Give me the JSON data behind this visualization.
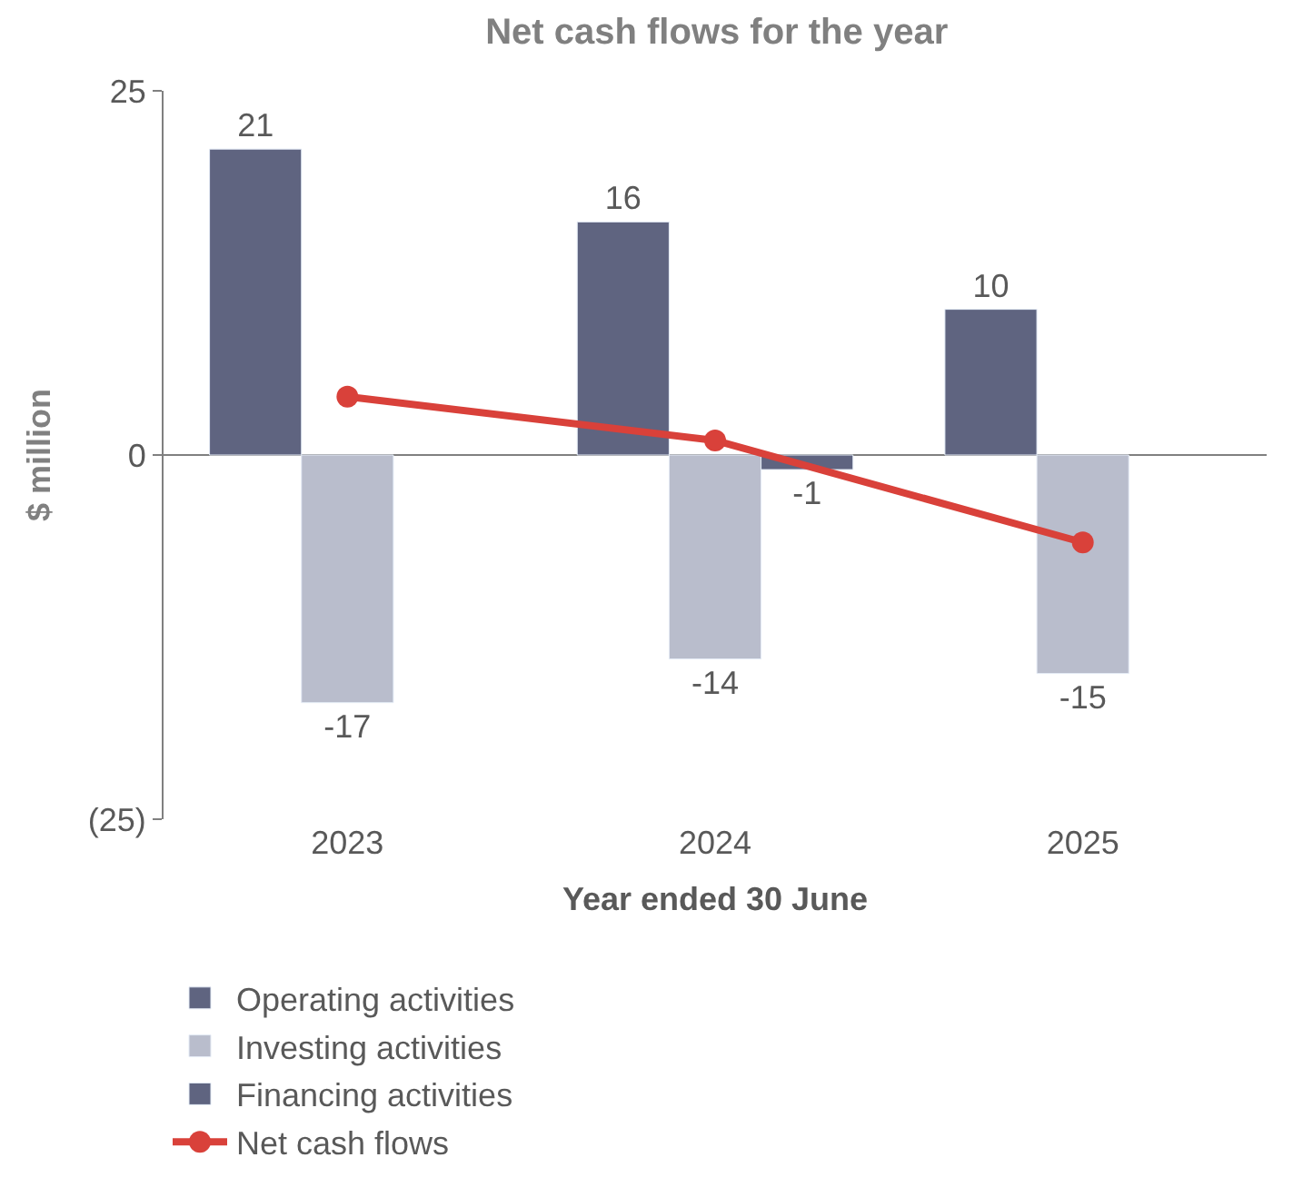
{
  "chart_data": {
    "type": "bar",
    "title": "Net cash flows for the year",
    "xlabel": "Year ended 30 June",
    "ylabel": "$ million",
    "categories": [
      "2023",
      "2024",
      "2025"
    ],
    "series": [
      {
        "name": "Operating activities",
        "color": "#5f6480",
        "values": [
          21,
          16,
          10
        ],
        "value_labels": [
          "21",
          "16",
          "10"
        ]
      },
      {
        "name": "Investing activities",
        "color": "#b9bdcc",
        "values": [
          -17,
          -14,
          -15
        ],
        "value_labels": [
          "-17",
          "-14",
          "-15"
        ]
      },
      {
        "name": "Financing activities",
        "color": "#5f6480",
        "values": [
          null,
          -1,
          null
        ],
        "value_labels": [
          null,
          "-1",
          null
        ]
      },
      {
        "name": "Net cash flows",
        "type": "line",
        "color": "#d9413a",
        "values": [
          4,
          1,
          -6
        ],
        "marker": "circle"
      }
    ],
    "ylim": [
      -25,
      25
    ],
    "yticks": [
      25,
      0,
      {
        "value": -25,
        "label": "(25)"
      }
    ],
    "legend": "bottom"
  }
}
